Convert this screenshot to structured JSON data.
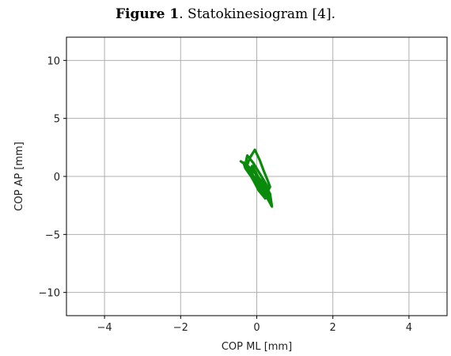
{
  "caption": {
    "label": "Figure 1",
    "text": ". Statokinesiogram [4]."
  },
  "chart_data": {
    "type": "line",
    "xlabel": "COP ML [mm]",
    "ylabel": "COP AP [mm]",
    "xlim": [
      -5,
      5
    ],
    "ylim": [
      -12,
      12
    ],
    "xticks": [
      -4,
      -2,
      0,
      2,
      4
    ],
    "yticks": [
      -10,
      -5,
      0,
      5,
      10
    ],
    "xtick_labels": [
      "−4",
      "−2",
      "0",
      "2",
      "4"
    ],
    "ytick_labels": [
      "−10",
      "−5",
      "0",
      "5",
      "10"
    ],
    "grid": true,
    "series": [
      {
        "color": "#0a8a0a",
        "x": [
          -0.42,
          -0.2,
          -0.05,
          0.1,
          0.25,
          0.35,
          0.4,
          0.3,
          0.15,
          0.0,
          -0.15,
          -0.3,
          -0.25,
          -0.1,
          0.05,
          0.2,
          0.3,
          0.25,
          0.1,
          -0.05,
          -0.2,
          -0.35,
          -0.3,
          -0.15,
          0.0,
          0.12,
          0.22,
          0.15,
          0.0,
          -0.12,
          -0.25,
          -0.18,
          -0.05,
          0.08,
          0.18,
          0.28,
          0.35,
          0.2,
          0.05,
          -0.08,
          -0.2,
          -0.12,
          0.0,
          0.1,
          0.22,
          0.32,
          0.38,
          0.25,
          0.1,
          -0.02
        ],
        "y": [
          1.3,
          0.8,
          0.3,
          -0.3,
          -0.9,
          -1.5,
          -2.6,
          -2.0,
          -1.2,
          -0.5,
          0.4,
          1.0,
          1.8,
          1.2,
          0.4,
          -0.4,
          -1.0,
          -1.6,
          -1.0,
          -0.2,
          0.6,
          1.2,
          0.7,
          0.0,
          -0.6,
          -1.3,
          -1.9,
          -1.4,
          -0.7,
          0.2,
          1.0,
          1.6,
          2.3,
          1.4,
          0.5,
          -0.3,
          -0.9,
          -1.8,
          -1.2,
          -0.4,
          0.3,
          0.9,
          0.2,
          -0.5,
          -1.1,
          -1.7,
          -2.2,
          -1.5,
          -0.8,
          0.1
        ]
      }
    ]
  }
}
